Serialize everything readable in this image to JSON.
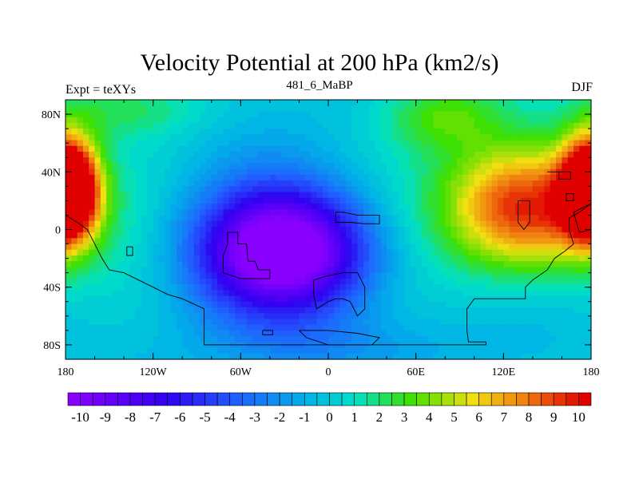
{
  "title": "Velocity Potential at 200 hPa (km2/s)",
  "left_string": "Expt = teXYs",
  "center_string": "481_6_MaBP",
  "right_string": "DJF",
  "chart_data": {
    "type": "heatmap",
    "projection": "cylindrical-equidistant",
    "variable": "Velocity Potential at 200 hPa",
    "units": "km2/s",
    "xlim": [
      -180,
      180
    ],
    "ylim": [
      -90,
      90
    ],
    "x_ticks": [
      {
        "value": -180,
        "label": "180"
      },
      {
        "value": -120,
        "label": "120W"
      },
      {
        "value": -60,
        "label": "60W"
      },
      {
        "value": 0,
        "label": "0"
      },
      {
        "value": 60,
        "label": "60E"
      },
      {
        "value": 120,
        "label": "120E"
      },
      {
        "value": 180,
        "label": "180"
      }
    ],
    "y_ticks": [
      {
        "value": 80,
        "label": "80N"
      },
      {
        "value": 40,
        "label": "40N"
      },
      {
        "value": 0,
        "label": "0"
      },
      {
        "value": -40,
        "label": "40S"
      },
      {
        "value": -80,
        "label": "80S"
      }
    ],
    "colorbar": {
      "orientation": "horizontal",
      "levels": [
        -10,
        -9.5,
        -9,
        -8.5,
        -8,
        -7.5,
        -7,
        -6.5,
        -6,
        -5.5,
        -5,
        -4.5,
        -4,
        -3.5,
        -3,
        -2.5,
        -2,
        -1.5,
        -1,
        -0.5,
        0,
        0.5,
        1,
        1.5,
        2,
        2.5,
        3,
        3.5,
        4,
        4.5,
        5,
        5.5,
        6,
        6.5,
        7,
        7.5,
        8,
        8.5,
        9,
        9.5,
        10
      ],
      "labels": [
        "-10",
        "-9",
        "-8",
        "-7",
        "-6",
        "-5",
        "-4",
        "-3",
        "-2",
        "-1",
        "0",
        "1",
        "2",
        "3",
        "4",
        "5",
        "6",
        "7",
        "8",
        "9",
        "10"
      ],
      "color_low": "#8a00ff",
      "color_mid": "#00e0c8",
      "color_high": "#e00000"
    },
    "field_centers": [
      {
        "lon": -30,
        "lat": -15,
        "amp": -11.5,
        "slon": 42,
        "slat": 30
      },
      {
        "lon": 135,
        "lat": 15,
        "amp": 11.2,
        "slon": 38,
        "slat": 32
      },
      {
        "lon": -178,
        "lat": 28,
        "amp": 8.5,
        "slon": 14,
        "slat": 24
      },
      {
        "lon": 180,
        "lat": 28,
        "amp": 8.5,
        "slon": 14,
        "slat": 24
      },
      {
        "lon": 80,
        "lat": 80,
        "amp": 3.5,
        "slon": 30,
        "slat": 18
      },
      {
        "lon": -140,
        "lat": 85,
        "amp": 2.5,
        "slon": 40,
        "slat": 15
      },
      {
        "lon": 0,
        "lat": -80,
        "amp": -1.5,
        "slon": 60,
        "slat": 15
      }
    ],
    "land_outlines": [
      [
        [
          -180,
          10
        ],
        [
          -172,
          5
        ],
        [
          -165,
          0
        ],
        [
          -160,
          -10
        ],
        [
          -155,
          -20
        ],
        [
          -150,
          -28
        ],
        [
          -140,
          -30
        ],
        [
          -130,
          -35
        ],
        [
          -120,
          -40
        ],
        [
          -110,
          -45
        ],
        [
          -100,
          -48
        ],
        [
          -85,
          -55
        ],
        [
          -85,
          -65
        ],
        [
          -85,
          -80
        ],
        [
          -30,
          -80
        ],
        [
          0,
          -80
        ],
        [
          40,
          -80
        ],
        [
          80,
          -80
        ],
        [
          108,
          -80
        ],
        [
          108,
          -78
        ],
        [
          96,
          -78
        ],
        [
          95,
          -70
        ],
        [
          95,
          -55
        ],
        [
          100,
          -48
        ],
        [
          115,
          -48
        ],
        [
          135,
          -48
        ],
        [
          135,
          -40
        ],
        [
          140,
          -35
        ],
        [
          150,
          -28
        ],
        [
          155,
          -20
        ],
        [
          162,
          -15
        ],
        [
          168,
          -10
        ],
        [
          165,
          0
        ],
        [
          165,
          8
        ],
        [
          172,
          12
        ],
        [
          180,
          18
        ]
      ],
      [
        [
          -138,
          -12
        ],
        [
          -134,
          -12
        ],
        [
          -134,
          -18
        ],
        [
          -138,
          -18
        ],
        [
          -138,
          -12
        ]
      ],
      [
        [
          -69,
          -2
        ],
        [
          -62,
          -2
        ],
        [
          -62,
          -10
        ],
        [
          -56,
          -10
        ],
        [
          -55,
          -22
        ],
        [
          -50,
          -22
        ],
        [
          -48,
          -28
        ],
        [
          -40,
          -28
        ],
        [
          -40,
          -34
        ],
        [
          -60,
          -34
        ],
        [
          -72,
          -30
        ],
        [
          -72,
          -18
        ],
        [
          -69,
          -10
        ],
        [
          -69,
          -2
        ]
      ],
      [
        [
          5,
          12
        ],
        [
          10,
          12
        ],
        [
          20,
          10
        ],
        [
          35,
          10
        ],
        [
          35,
          4
        ],
        [
          25,
          4
        ],
        [
          15,
          5
        ],
        [
          5,
          5
        ],
        [
          5,
          12
        ]
      ],
      [
        [
          -10,
          -35
        ],
        [
          0,
          -32
        ],
        [
          10,
          -30
        ],
        [
          20,
          -30
        ],
        [
          25,
          -40
        ],
        [
          25,
          -55
        ],
        [
          20,
          -60
        ],
        [
          15,
          -50
        ],
        [
          10,
          -48
        ],
        [
          5,
          -48
        ],
        [
          0,
          -50
        ],
        [
          -8,
          -55
        ],
        [
          -10,
          -45
        ],
        [
          -10,
          -35
        ]
      ],
      [
        [
          -45,
          -70
        ],
        [
          -38,
          -70
        ],
        [
          -38,
          -73
        ],
        [
          -45,
          -73
        ],
        [
          -45,
          -70
        ]
      ],
      [
        [
          -20,
          -70
        ],
        [
          0,
          -70
        ],
        [
          20,
          -72
        ],
        [
          35,
          -75
        ],
        [
          30,
          -80
        ],
        [
          0,
          -80
        ],
        [
          -15,
          -75
        ],
        [
          -20,
          -70
        ]
      ],
      [
        [
          150,
          40
        ],
        [
          158,
          40
        ],
        [
          158,
          35
        ],
        [
          166,
          35
        ],
        [
          166,
          40
        ],
        [
          160,
          40
        ],
        [
          150,
          40
        ]
      ],
      [
        [
          130,
          20
        ],
        [
          138,
          20
        ],
        [
          138,
          5
        ],
        [
          134,
          0
        ],
        [
          130,
          5
        ],
        [
          130,
          20
        ]
      ],
      [
        [
          163,
          25
        ],
        [
          168,
          25
        ],
        [
          168,
          20
        ],
        [
          163,
          20
        ],
        [
          163,
          25
        ]
      ],
      [
        [
          168,
          12
        ],
        [
          180,
          18
        ],
        [
          180,
          0
        ],
        [
          172,
          -2
        ],
        [
          168,
          12
        ]
      ]
    ]
  }
}
